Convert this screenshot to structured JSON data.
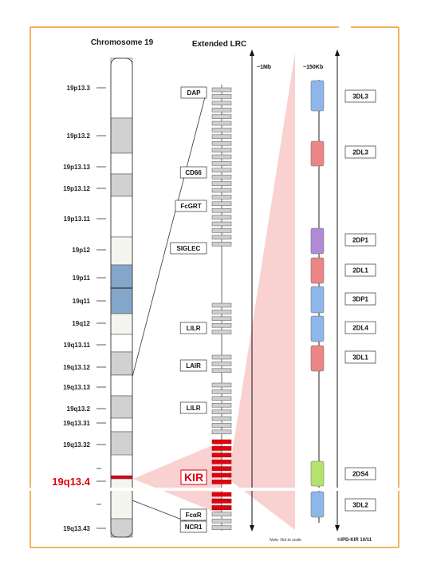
{
  "headers": {
    "chromosome": "Chromosome 19",
    "lrc": "Extended LRC"
  },
  "bands": [
    {
      "label": "19p13.3",
      "fill": "#ffffff"
    },
    {
      "label": "19p13.2",
      "fill": "#d1d1d1"
    },
    {
      "label": "19p13.13",
      "fill": "#ffffff"
    },
    {
      "label": "19p13.12",
      "fill": "#d1d1d1"
    },
    {
      "label": "19p13.11",
      "fill": "#ffffff"
    },
    {
      "label": "19p12",
      "fill": "#f5f5ef"
    },
    {
      "label": "19p11",
      "fill": "#7ea1c8"
    },
    {
      "label": "19q11",
      "fill": "#7ea1c8"
    },
    {
      "label": "19q12",
      "fill": "#f5f5ef"
    },
    {
      "label": "19q13.11",
      "fill": "#ffffff"
    },
    {
      "label": "19q13.12",
      "fill": "#d1d1d1"
    },
    {
      "label": "19q13.13",
      "fill": "#ffffff"
    },
    {
      "label": "19q13.2",
      "fill": "#d1d1d1"
    },
    {
      "label": "19q13.31",
      "fill": "#ffffff"
    },
    {
      "label": "19q13.32",
      "fill": "#d1d1d1"
    },
    {
      "label": "19q13.4",
      "fill": "#e3000f",
      "highlight": true
    },
    {
      "label": "",
      "fill": "#f5f5ef"
    },
    {
      "label": "19q13.43",
      "fill": "#d1d1d1"
    }
  ],
  "lrc_labels": [
    "DAP",
    "CD66",
    "FcGRT",
    "SIGLEC",
    "LILR",
    "LAIR",
    "LILR",
    "KIR",
    "FcαR",
    "NCR1"
  ],
  "scales": {
    "lrc": "~1Mb",
    "kir": "~150Kb"
  },
  "kir_genes": [
    {
      "label": "3DL3",
      "color": "#8fb6e8"
    },
    {
      "label": "2DL3",
      "color": "#ec8585"
    },
    {
      "label": "2DP1",
      "color": "#b08ad6"
    },
    {
      "label": "2DL1",
      "color": "#ec8585"
    },
    {
      "label": "3DP1",
      "color": "#8fb6e8"
    },
    {
      "label": "2DL4",
      "color": "#8fb6e8"
    },
    {
      "label": "3DL1",
      "color": "#ec8585"
    },
    {
      "label": "2DS4",
      "color": "#b5e26b"
    },
    {
      "label": "3DL2",
      "color": "#8fb6e8"
    }
  ],
  "colors": {
    "frame": "#f39a2f",
    "kir_red": "#e3000f",
    "zoom_fill": "#f8c9c9",
    "segment_gray": "#cfcfcf"
  },
  "footer": {
    "note": "Note: Not to scale",
    "credit": "©IPD-KIR 10/11"
  }
}
